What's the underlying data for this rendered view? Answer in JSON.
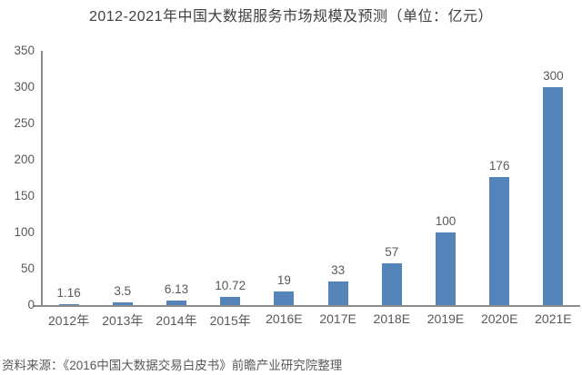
{
  "title": "2012-2021年中国大数据服务市场规模及预测（单位：亿元）",
  "source_note": "资料来源：《2016中国大数据交易白皮书》前瞻产业研究院整理",
  "chart_data": {
    "type": "bar",
    "title": "2012-2021年中国大数据服务市场规模及预测（单位：亿元）",
    "categories": [
      "2012年",
      "2013年",
      "2014年",
      "2015年",
      "2016E",
      "2017E",
      "2018E",
      "2019E",
      "2020E",
      "2021E"
    ],
    "values": [
      1.16,
      3.5,
      6.13,
      10.72,
      19,
      33,
      57,
      100,
      176,
      300
    ],
    "value_labels": [
      "1.16",
      "3.5",
      "6.13",
      "10.72",
      "19",
      "33",
      "57",
      "100",
      "176",
      "300"
    ],
    "xlabel": "",
    "ylabel": "",
    "ylim": [
      0,
      350
    ],
    "yticks": [
      0,
      50,
      100,
      150,
      200,
      250,
      300,
      350
    ],
    "grid": false,
    "legend": "none",
    "data_labels": true
  },
  "colors": {
    "bar": "#5584bb",
    "axis": "#8c8c8c",
    "title_text": "#404040",
    "label_text": "#595959",
    "background": "#ffffff"
  }
}
